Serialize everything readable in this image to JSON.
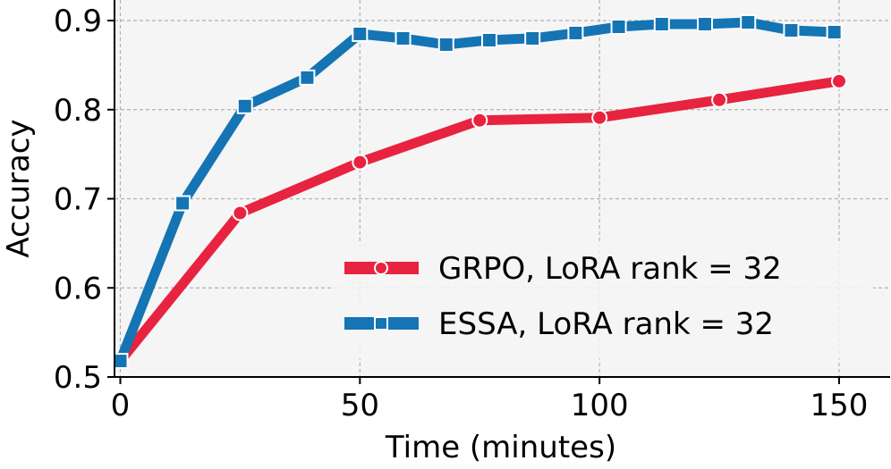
{
  "chart_data": {
    "type": "line",
    "title": "",
    "xlabel": "Time (minutes)",
    "ylabel": "Accuracy",
    "xlim": [
      -1,
      160
    ],
    "ylim": [
      0.5,
      0.9
    ],
    "xticks": [
      0,
      50,
      100,
      150
    ],
    "yticks": [
      0.5,
      0.6,
      0.7,
      0.8,
      0.9
    ],
    "grid": true,
    "legend_position": "bottom-right",
    "series": [
      {
        "name": "GRPO, LoRA rank = 32",
        "color": "#e8233f",
        "marker": "circle",
        "x": [
          0,
          25,
          50,
          75,
          100,
          125,
          150
        ],
        "y": [
          0.518,
          0.684,
          0.741,
          0.788,
          0.791,
          0.811,
          0.832
        ]
      },
      {
        "name": "ESSA, LoRA rank = 32",
        "color": "#1474b4",
        "marker": "square",
        "x": [
          0,
          13,
          26,
          39,
          50,
          59,
          68,
          77,
          86,
          95,
          104,
          113,
          122,
          131,
          140,
          149
        ],
        "y": [
          0.518,
          0.695,
          0.804,
          0.836,
          0.885,
          0.88,
          0.873,
          0.878,
          0.88,
          0.886,
          0.893,
          0.896,
          0.896,
          0.898,
          0.889,
          0.887
        ]
      }
    ]
  }
}
